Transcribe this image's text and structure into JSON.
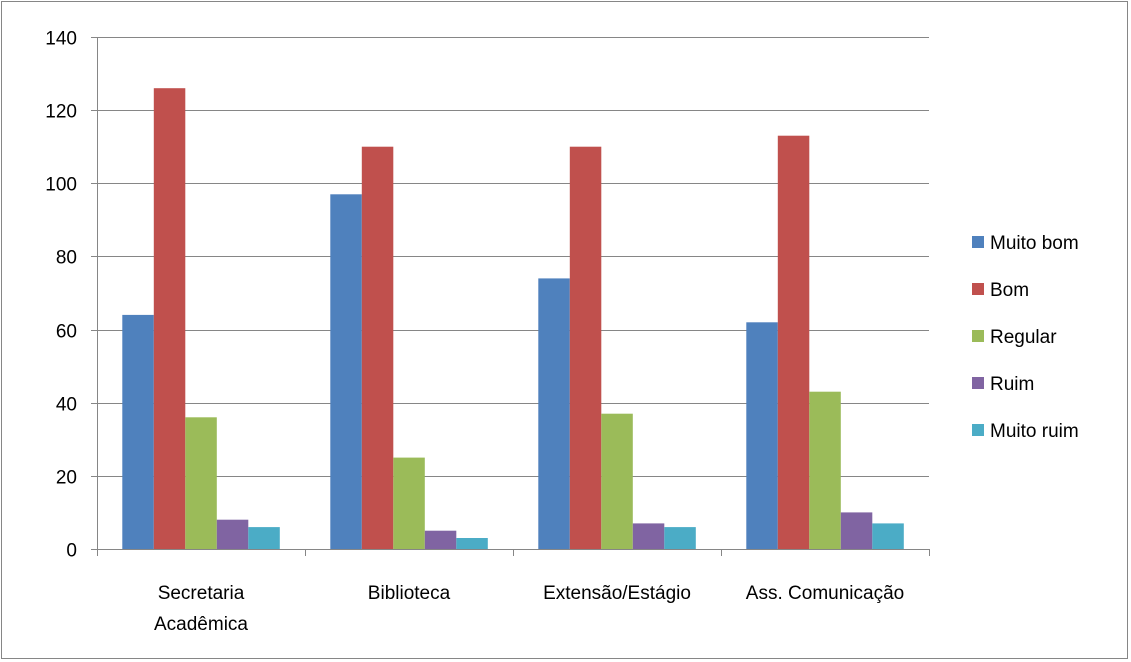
{
  "chart_data": {
    "type": "bar",
    "categories": [
      [
        "Secretaria",
        "Acadêmica"
      ],
      [
        "Biblioteca"
      ],
      [
        "Extensão/Estágio"
      ],
      [
        "Ass. Comunicação"
      ]
    ],
    "series": [
      {
        "name": "Muito bom",
        "color": "#4F81BD",
        "values": [
          64,
          97,
          74,
          62
        ]
      },
      {
        "name": "Bom",
        "color": "#C0504D",
        "values": [
          126,
          110,
          110,
          113
        ]
      },
      {
        "name": "Regular",
        "color": "#9BBB59",
        "values": [
          36,
          25,
          37,
          43
        ]
      },
      {
        "name": "Ruim",
        "color": "#8064A2",
        "values": [
          8,
          5,
          7,
          10
        ]
      },
      {
        "name": "Muito ruim",
        "color": "#4BACC6",
        "values": [
          6,
          3,
          6,
          7
        ]
      }
    ],
    "ylim": [
      0,
      140
    ],
    "yticks": [
      0,
      20,
      40,
      60,
      80,
      100,
      120,
      140
    ],
    "grid": true,
    "legend_position": "right"
  }
}
